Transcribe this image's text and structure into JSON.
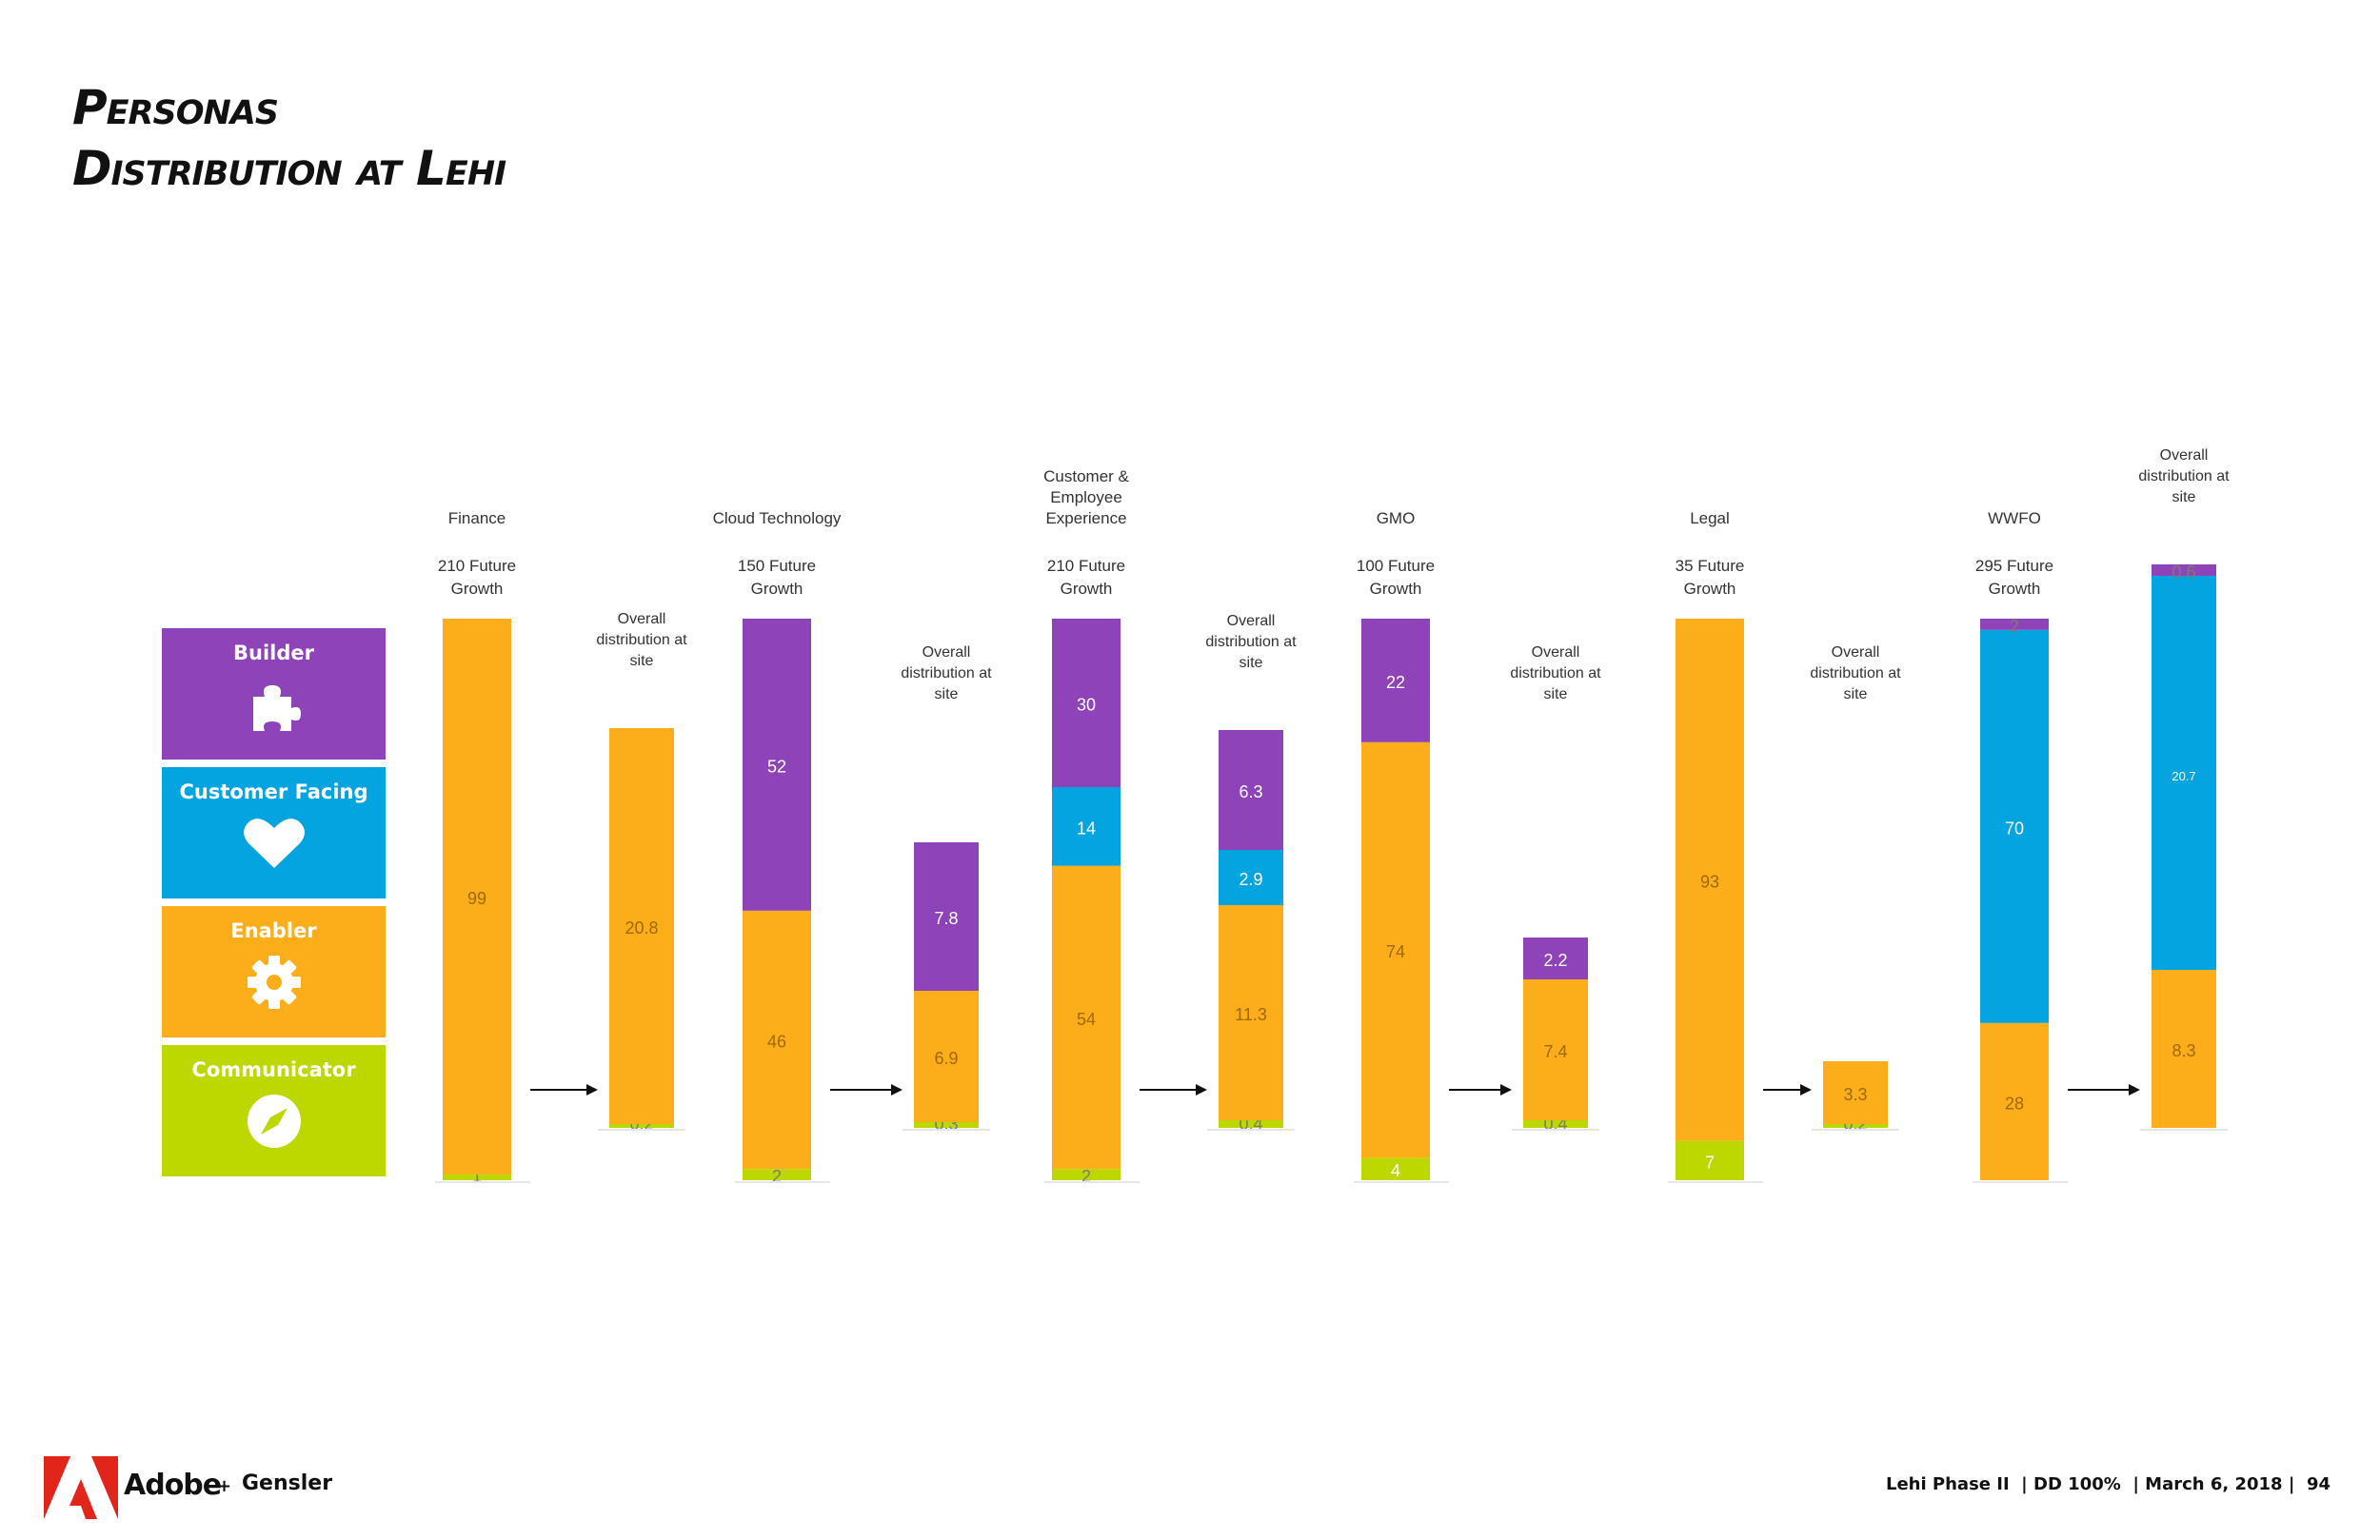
{
  "header": {
    "title": "Personas",
    "subtitle": "Distribution at Lehi"
  },
  "legend": [
    {
      "label": "Builder",
      "color": "#8e44b8",
      "icon": "puzzle-icon"
    },
    {
      "label": "Customer Facing",
      "color": "#04a4e0",
      "icon": "heart-icon"
    },
    {
      "label": "Enabler",
      "color": "#fbae1a",
      "icon": "gear-icon"
    },
    {
      "label": "Communicator",
      "color": "#bcd800",
      "icon": "compass-icon"
    }
  ],
  "chart_data": {
    "type": "bar",
    "stacking": "stacked",
    "orientation": "vertical",
    "series_order_bottom_to_top": [
      "Communicator",
      "Enabler",
      "Customer Facing",
      "Builder"
    ],
    "colors": {
      "Builder": "#8e44b8",
      "Customer Facing": "#04a4e0",
      "Enabler": "#fbae1a",
      "Communicator": "#bcd800"
    },
    "groups": [
      {
        "name": "Finance",
        "growth": [
          "210 Future",
          "Growth"
        ],
        "future": {
          "Communicator": 1,
          "Enabler": 99
        },
        "overall_label": [
          "Overall",
          "distribution at",
          "site"
        ],
        "overall": {
          "Communicator": 0.2,
          "Enabler": 20.8
        }
      },
      {
        "name": "Cloud Technology",
        "growth": [
          "150 Future",
          "Growth"
        ],
        "future": {
          "Communicator": 2,
          "Enabler": 46,
          "Builder": 52
        },
        "overall_label": [
          "Overall",
          "distribution at",
          "site"
        ],
        "overall": {
          "Communicator": 0.3,
          "Enabler": 6.9,
          "Builder": 7.8
        }
      },
      {
        "name": "Customer & Employee Experience",
        "name_lines": [
          "Customer &",
          "Employee",
          "Experience"
        ],
        "growth": [
          "210 Future",
          "Growth"
        ],
        "future": {
          "Communicator": 2,
          "Enabler": 54,
          "Customer Facing": 14,
          "Builder": 30
        },
        "overall_label": [
          "Overall",
          "distribution at",
          "site"
        ],
        "overall": {
          "Communicator": 0.4,
          "Enabler": 11.3,
          "Customer Facing": 2.9,
          "Builder": 6.3
        }
      },
      {
        "name": "GMO",
        "growth": [
          "100 Future",
          "Growth"
        ],
        "future": {
          "Communicator": 4,
          "Enabler": 74,
          "Builder": 22
        },
        "overall_label": [
          "Overall",
          "distribution at",
          "site"
        ],
        "overall": {
          "Communicator": 0.4,
          "Enabler": 7.4,
          "Builder": 2.2
        }
      },
      {
        "name": "Legal",
        "growth": [
          "35 Future",
          "Growth"
        ],
        "future": {
          "Communicator": 7,
          "Enabler": 93
        },
        "overall_label": [
          "Overall",
          "distribution at",
          "site"
        ],
        "overall": {
          "Communicator": 0.2,
          "Enabler": 3.3
        }
      },
      {
        "name": "WWFO",
        "growth": [
          "295 Future",
          "Growth"
        ],
        "future": {
          "Enabler": 28,
          "Customer Facing": 70,
          "Builder": 2
        },
        "overall_label": [
          "Overall",
          "distribution at",
          "site"
        ],
        "overall": {
          "Enabler": 8.3,
          "Customer Facing": 20.7,
          "Builder": 0.6
        }
      }
    ]
  },
  "footer": {
    "brand": "Adobe",
    "plus": "+",
    "partner": "Gensler",
    "page_info": "Lehi Phase II  | DD 100%  | March 6, 2018 |  94"
  }
}
